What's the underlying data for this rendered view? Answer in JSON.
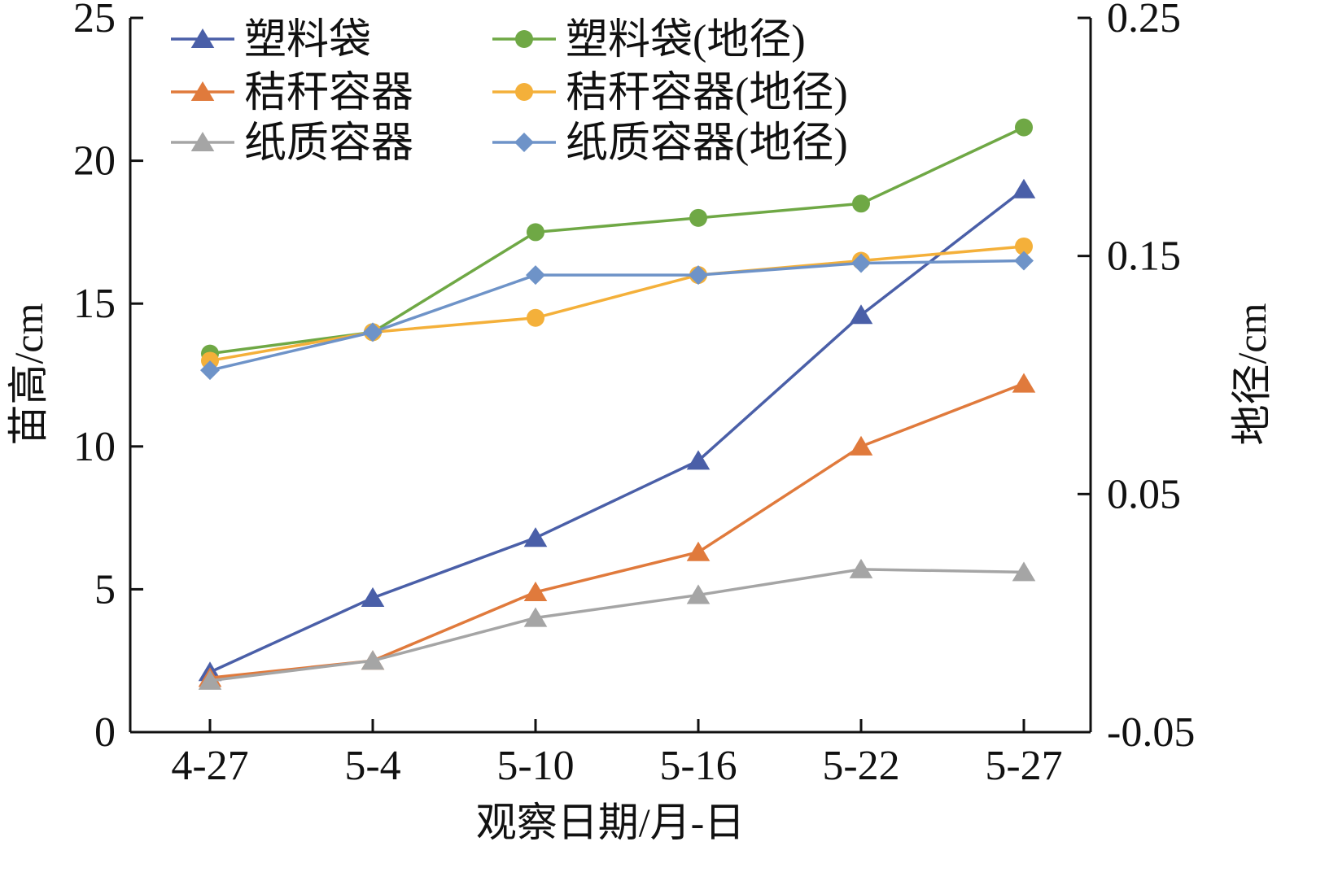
{
  "chart_data": {
    "type": "line",
    "x_label": "观察日期/月-日",
    "y_left_label": "苗高/cm",
    "y_right_label": "地径/cm",
    "categories": [
      "4-27",
      "5-4",
      "5-10",
      "5-16",
      "5-22",
      "5-27"
    ],
    "y_left": {
      "min": 0,
      "max": 25,
      "ticks": [
        0,
        5,
        10,
        15,
        20,
        25
      ],
      "tick_labels": [
        "0",
        "5",
        "10",
        "15",
        "20",
        "25"
      ]
    },
    "y_right": {
      "min": -0.05,
      "max": 0.25,
      "ticks": [
        -0.05,
        0.05,
        0.15,
        0.25
      ],
      "tick_labels": [
        "-0.05",
        "0.05",
        "0.15",
        "0.25"
      ]
    },
    "grid": false,
    "legend_position": "top-left",
    "series": [
      {
        "name": "塑料袋",
        "axis": "left",
        "marker": "triangle",
        "color": "#4a5fa8",
        "values": [
          2.1,
          4.7,
          6.8,
          9.5,
          14.6,
          19.0
        ]
      },
      {
        "name": "秸秆容器",
        "axis": "left",
        "marker": "triangle",
        "color": "#e07a3c",
        "values": [
          1.9,
          2.5,
          4.9,
          6.3,
          10.0,
          12.2
        ]
      },
      {
        "name": "纸质容器",
        "axis": "left",
        "marker": "triangle",
        "color": "#a5a5a5",
        "values": [
          1.8,
          2.5,
          4.0,
          4.8,
          5.7,
          5.6
        ]
      },
      {
        "name": "塑料袋(地径)",
        "axis": "right",
        "marker": "circle",
        "color": "#6fa845",
        "values": [
          0.109,
          0.118,
          0.16,
          0.166,
          0.172,
          0.204
        ]
      },
      {
        "name": "秸秆容器(地径)",
        "axis": "right",
        "marker": "circle",
        "color": "#f4b03a",
        "values": [
          0.106,
          0.118,
          0.124,
          0.142,
          0.148,
          0.154
        ]
      },
      {
        "name": "纸质容器(地径)",
        "axis": "right",
        "marker": "diamond",
        "color": "#6e93c8",
        "values": [
          0.102,
          0.118,
          0.142,
          0.142,
          0.147,
          0.148
        ]
      }
    ]
  }
}
